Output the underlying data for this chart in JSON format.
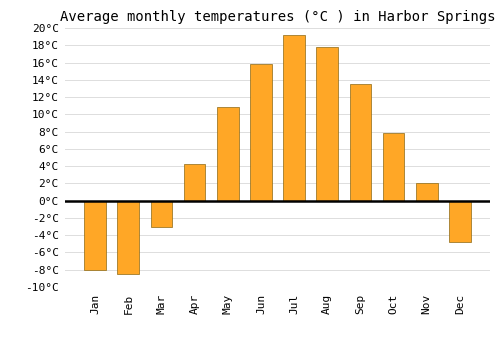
{
  "title": "Average monthly temperatures (°C ) in Harbor Springs",
  "months": [
    "Jan",
    "Feb",
    "Mar",
    "Apr",
    "May",
    "Jun",
    "Jul",
    "Aug",
    "Sep",
    "Oct",
    "Nov",
    "Dec"
  ],
  "values": [
    -8.0,
    -8.5,
    -3.0,
    4.3,
    10.8,
    15.8,
    19.2,
    17.8,
    13.5,
    7.8,
    2.0,
    -4.8
  ],
  "bar_color": "#FFA726",
  "bar_edge_color": "#8B6914",
  "background_color": "#ffffff",
  "plot_bg_color": "#ffffff",
  "ylim": [
    -10,
    20
  ],
  "ytick_step": 2,
  "title_fontsize": 10,
  "tick_fontsize": 8,
  "grid_color": "#dddddd"
}
